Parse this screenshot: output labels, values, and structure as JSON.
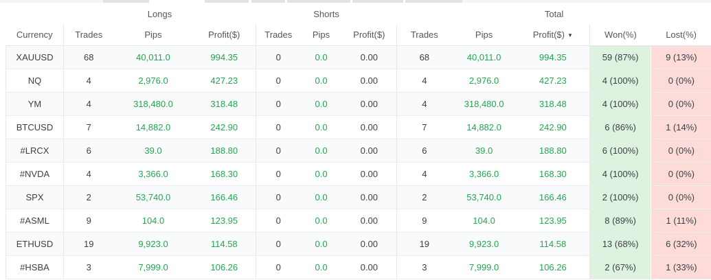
{
  "table": {
    "group_headers": {
      "longs": "Longs",
      "shorts": "Shorts",
      "total": "Total"
    },
    "column_headers": {
      "currency": "Currency",
      "longs_trades": "Trades",
      "longs_pips": "Pips",
      "longs_profit": "Profit($)",
      "shorts_trades": "Trades",
      "shorts_pips": "Pips",
      "shorts_profit": "Profit($)",
      "total_trades": "Trades",
      "total_pips": "Pips",
      "total_profit": "Profit($)",
      "won": "Won(%)",
      "lost": "Lost(%)"
    },
    "sort": {
      "column": "total_profit",
      "direction": "desc",
      "indicator": "▼"
    },
    "rows": [
      {
        "currency": "XAUUSD",
        "longs": {
          "trades": "68",
          "pips": "40,011.0",
          "profit": "994.35"
        },
        "shorts": {
          "trades": "0",
          "pips": "0.0",
          "profit": "0.00"
        },
        "total": {
          "trades": "68",
          "pips": "40,011.0",
          "profit": "994.35"
        },
        "won": "59 (87%)",
        "lost": "9 (13%)"
      },
      {
        "currency": "NQ",
        "longs": {
          "trades": "4",
          "pips": "2,976.0",
          "profit": "427.23"
        },
        "shorts": {
          "trades": "0",
          "pips": "0.0",
          "profit": "0.00"
        },
        "total": {
          "trades": "4",
          "pips": "2,976.0",
          "profit": "427.23"
        },
        "won": "4 (100%)",
        "lost": "0 (0%)"
      },
      {
        "currency": "YM",
        "longs": {
          "trades": "4",
          "pips": "318,480.0",
          "profit": "318.48"
        },
        "shorts": {
          "trades": "0",
          "pips": "0.0",
          "profit": "0.00"
        },
        "total": {
          "trades": "4",
          "pips": "318,480.0",
          "profit": "318.48"
        },
        "won": "4 (100%)",
        "lost": "0 (0%)"
      },
      {
        "currency": "BTCUSD",
        "longs": {
          "trades": "7",
          "pips": "14,882.0",
          "profit": "242.90"
        },
        "shorts": {
          "trades": "0",
          "pips": "0.0",
          "profit": "0.00"
        },
        "total": {
          "trades": "7",
          "pips": "14,882.0",
          "profit": "242.90"
        },
        "won": "6 (86%)",
        "lost": "1 (14%)"
      },
      {
        "currency": "#LRCX",
        "longs": {
          "trades": "6",
          "pips": "39.0",
          "profit": "188.80"
        },
        "shorts": {
          "trades": "0",
          "pips": "0.0",
          "profit": "0.00"
        },
        "total": {
          "trades": "6",
          "pips": "39.0",
          "profit": "188.80"
        },
        "won": "6 (100%)",
        "lost": "0 (0%)"
      },
      {
        "currency": "#NVDA",
        "longs": {
          "trades": "4",
          "pips": "3,366.0",
          "profit": "168.30"
        },
        "shorts": {
          "trades": "0",
          "pips": "0.0",
          "profit": "0.00"
        },
        "total": {
          "trades": "4",
          "pips": "3,366.0",
          "profit": "168.30"
        },
        "won": "4 (100%)",
        "lost": "0 (0%)"
      },
      {
        "currency": "SPX",
        "longs": {
          "trades": "2",
          "pips": "53,740.0",
          "profit": "166.46"
        },
        "shorts": {
          "trades": "0",
          "pips": "0.0",
          "profit": "0.00"
        },
        "total": {
          "trades": "2",
          "pips": "53,740.0",
          "profit": "166.46"
        },
        "won": "2 (100%)",
        "lost": "0 (0%)"
      },
      {
        "currency": "#ASML",
        "longs": {
          "trades": "9",
          "pips": "104.0",
          "profit": "123.95"
        },
        "shorts": {
          "trades": "0",
          "pips": "0.0",
          "profit": "0.00"
        },
        "total": {
          "trades": "9",
          "pips": "104.0",
          "profit": "123.95"
        },
        "won": "8 (89%)",
        "lost": "1 (11%)"
      },
      {
        "currency": "ETHUSD",
        "longs": {
          "trades": "19",
          "pips": "9,923.0",
          "profit": "114.58"
        },
        "shorts": {
          "trades": "0",
          "pips": "0.0",
          "profit": "0.00"
        },
        "total": {
          "trades": "19",
          "pips": "9,923.0",
          "profit": "114.58"
        },
        "won": "13 (68%)",
        "lost": "6 (32%)"
      },
      {
        "currency": "#HSBA",
        "longs": {
          "trades": "3",
          "pips": "7,999.0",
          "profit": "106.26"
        },
        "shorts": {
          "trades": "0",
          "pips": "0.0",
          "profit": "0.00"
        },
        "total": {
          "trades": "3",
          "pips": "7,999.0",
          "profit": "106.26"
        },
        "won": "2 (67%)",
        "lost": "1 (33%)"
      }
    ]
  },
  "colors": {
    "positive_text": "#21a750",
    "won_cell_bg": "#ddf3e0",
    "lost_cell_bg": "#fcdbd9",
    "row_stripe_bg": "#f9fafb",
    "header_text": "#53575b",
    "body_text": "#3d4043",
    "border": "#ebedef"
  }
}
